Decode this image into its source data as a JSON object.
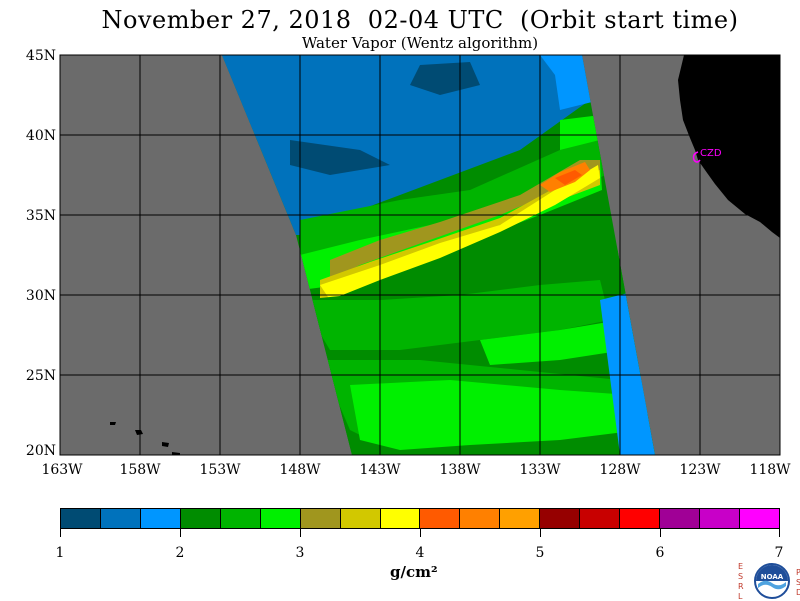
{
  "header": {
    "title": "November 27, 2018  02-04 UTC  (Orbit start time)",
    "subtitle": "Water Vapor (Wentz algorithm)"
  },
  "map": {
    "lat_labels": [
      "45N",
      "40N",
      "35N",
      "30N",
      "25N",
      "20N"
    ],
    "lon_labels": [
      "163W",
      "158W",
      "153W",
      "148W",
      "143W",
      "138W",
      "133W",
      "128W",
      "123W",
      "118W"
    ],
    "station_label": "CZD",
    "colors": {
      "no_data": "#6b6b6b",
      "land": "#000000",
      "grid": "#000000",
      "station": "#ff00ff"
    }
  },
  "colorbar": {
    "colors": [
      "#004b73",
      "#0072bc",
      "#0096ff",
      "#008c00",
      "#00b400",
      "#00f000",
      "#a0961e",
      "#d2c800",
      "#ffff00",
      "#ff5a00",
      "#ff8000",
      "#ffa000",
      "#960000",
      "#c80000",
      "#ff0000",
      "#a00096",
      "#c800c8",
      "#ff00ff"
    ],
    "tick_labels": [
      "1",
      "2",
      "3",
      "4",
      "5",
      "6",
      "7"
    ],
    "units": "g/cm²"
  },
  "logo": {
    "left_letters": [
      "E",
      "S",
      "R",
      "L"
    ],
    "right_letters": [
      "P",
      "S",
      "D"
    ],
    "center": "NOAA"
  }
}
